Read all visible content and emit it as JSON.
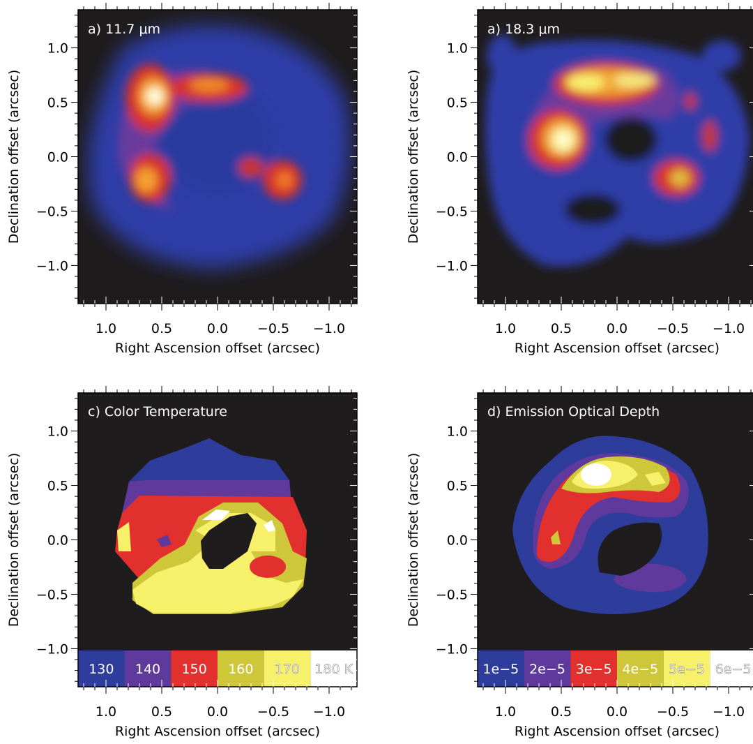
{
  "colors": {
    "background": "#1f1c1e",
    "level_130": "#2e3d9c",
    "level_140": "#5f3a9c",
    "level_150": "#e1302d",
    "level_160": "#cfc73a",
    "level_170": "#f6f06a",
    "level_180": "#ffffff"
  },
  "chart_data": [
    {
      "type": "heatmap",
      "panel": "a",
      "title": "a) 11.7 μm",
      "xlabel": "Right Ascension offset (arcsec)",
      "ylabel": "Declination offset (arcsec)",
      "xlim": [
        1.25,
        -1.25
      ],
      "ylim": [
        -1.35,
        1.35
      ],
      "xticks": [
        "1.0",
        "0.5",
        "0.0",
        "−0.5",
        "−1.0"
      ],
      "yticks": [
        "1.0",
        "0.5",
        "0.0",
        "−0.5",
        "−1.0"
      ],
      "features": [
        {
          "x": 0.6,
          "y": 0.55,
          "level": "peak"
        },
        {
          "x": 0.15,
          "y": 0.65,
          "level": "high"
        },
        {
          "x": 0.65,
          "y": -0.2,
          "level": "high"
        },
        {
          "x": -0.6,
          "y": -0.2,
          "level": "high"
        }
      ]
    },
    {
      "type": "heatmap",
      "panel": "b",
      "title": "a) 18.3 μm",
      "xlabel": "Right Ascension offset (arcsec)",
      "ylabel": "Declination offset (arcsec)",
      "xlim": [
        1.25,
        -1.25
      ],
      "ylim": [
        -1.35,
        1.35
      ],
      "xticks": [
        "1.0",
        "0.5",
        "0.0",
        "−0.5",
        "−1.0"
      ],
      "yticks": [
        "1.0",
        "0.5",
        "0.0",
        "−0.5",
        "−1.0"
      ],
      "features": [
        {
          "x": 0.4,
          "y": 0.6,
          "level": "peak"
        },
        {
          "x": -0.1,
          "y": 0.65,
          "level": "peak"
        },
        {
          "x": 0.55,
          "y": 0.15,
          "level": "peak"
        },
        {
          "x": -0.6,
          "y": -0.15,
          "level": "high"
        }
      ]
    },
    {
      "type": "heatmap",
      "panel": "c",
      "title": "c) Color Temperature",
      "xlabel": "Right Ascension offset (arcsec)",
      "ylabel": "Declination offset (arcsec)",
      "xlim": [
        1.25,
        -1.25
      ],
      "ylim": [
        -1.35,
        1.35
      ],
      "xticks": [
        "1.0",
        "0.5",
        "0.0",
        "−0.5",
        "−1.0"
      ],
      "yticks": [
        "1.0",
        "0.5",
        "0.0",
        "−0.5",
        "−1.0"
      ],
      "legend": [
        "130",
        "140",
        "150",
        "160",
        "170",
        "180 K"
      ],
      "levels": [
        130,
        140,
        150,
        160,
        170,
        180
      ],
      "units": "K"
    },
    {
      "type": "heatmap",
      "panel": "d",
      "title": "d) Emission Optical Depth",
      "xlabel": "Right Ascension offset (arcsec)",
      "ylabel": "Declination offset (arcsec)",
      "xlim": [
        1.25,
        -1.25
      ],
      "ylim": [
        -1.35,
        1.35
      ],
      "xticks": [
        "1.0",
        "0.5",
        "0.0",
        "−0.5",
        "−1.0"
      ],
      "yticks": [
        "1.0",
        "0.5",
        "0.0",
        "−0.5",
        "−1.0"
      ],
      "legend": [
        "1e−5",
        "2e−5",
        "3e−5",
        "4e−5",
        "5e−5",
        "6e−5"
      ],
      "levels": [
        1e-05,
        2e-05,
        3e-05,
        4e-05,
        5e-05,
        6e-05
      ]
    }
  ]
}
